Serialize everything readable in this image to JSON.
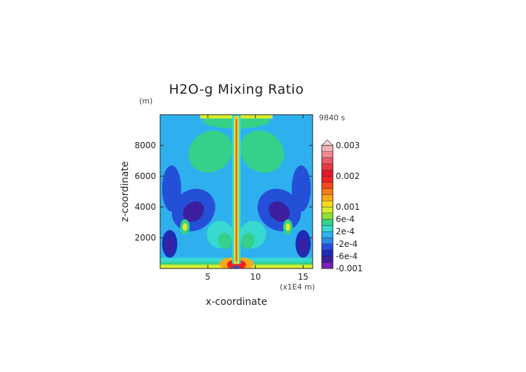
{
  "chart_data": {
    "type": "heatmap",
    "title": "H2O-g Mixing Ratio",
    "xlabel": "x-coordinate",
    "ylabel": "z-coordinate",
    "x_units": "(x1E4 m)",
    "y_units": "(m)",
    "time_label": "9840 s",
    "xlim": [
      0,
      16
    ],
    "ylim": [
      0,
      10000
    ],
    "x_ticks": [
      {
        "value": 5,
        "label": "5"
      },
      {
        "value": 10,
        "label": "10"
      },
      {
        "value": 15,
        "label": "15"
      }
    ],
    "y_ticks": [
      {
        "value": 2000,
        "label": "2000"
      },
      {
        "value": 4000,
        "label": "4000"
      },
      {
        "value": 6000,
        "label": "6000"
      },
      {
        "value": 8000,
        "label": "8000"
      }
    ],
    "colorbar": {
      "levels": [
        -0.001,
        -0.0008,
        -0.0006,
        -0.0004,
        -0.0002,
        0,
        0.0002,
        0.0004,
        0.0006,
        0.0008,
        0.001,
        0.0012,
        0.0014,
        0.0016,
        0.0018,
        0.002,
        0.0022,
        0.0024,
        0.0026,
        0.0028,
        0.003
      ],
      "colors": [
        "#7d1fb8",
        "#3d1f9e",
        "#1f2ab5",
        "#2450d8",
        "#2b8ae8",
        "#2fb0ee",
        "#38d9d0",
        "#35d08a",
        "#8ee03a",
        "#d8ec2c",
        "#f6dc1c",
        "#f8a81a",
        "#f67a1c",
        "#f44a1a",
        "#ee2222",
        "#e01a26",
        "#e63a44",
        "#ec5c66",
        "#f2888e",
        "#f8b2b6"
      ],
      "tick_labels": [
        {
          "value": 0.003,
          "label": "0.003"
        },
        {
          "value": 0.002,
          "label": "0.002"
        },
        {
          "value": 0.001,
          "label": "0.001"
        },
        {
          "value": 0.0006,
          "label": "6e-4"
        },
        {
          "value": 0.0002,
          "label": "2e-4"
        },
        {
          "value": -0.0002,
          "label": "-2e-4"
        },
        {
          "value": -0.0006,
          "label": "-6e-4"
        },
        {
          "value": -0.001,
          "label": "-0.001"
        }
      ]
    },
    "field_description": "Symmetric plume about x=8: strong vertical column near x=8 up to 10000 m, dark negative lobes at mid-levels on each side, green anvil features in upper troposphere, yellow/orange near-surface layer with red core at the center."
  }
}
